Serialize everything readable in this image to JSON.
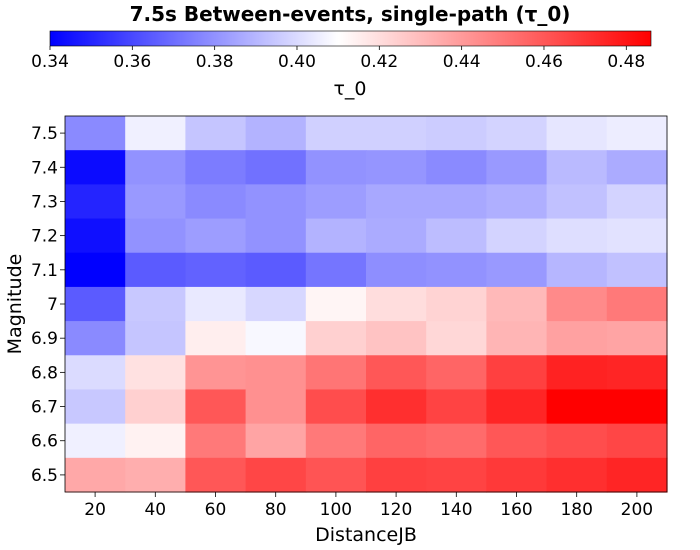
{
  "chart_data": {
    "type": "heatmap",
    "title": "7.5s Between-events, single-path (τ_0)",
    "xlabel": "DistanceJB",
    "ylabel": "Magnitude",
    "x": [
      "20",
      "40",
      "60",
      "80",
      "100",
      "120",
      "140",
      "160",
      "180",
      "200"
    ],
    "y": [
      "7.5",
      "7.4",
      "7.3",
      "7.2",
      "7.1",
      "7",
      "6.9",
      "6.8",
      "6.7",
      "6.6",
      "6.5"
    ],
    "values": [
      [
        0.378,
        0.406,
        0.394,
        0.389,
        0.397,
        0.397,
        0.396,
        0.398,
        0.403,
        0.405
      ],
      [
        0.343,
        0.38,
        0.374,
        0.371,
        0.38,
        0.381,
        0.378,
        0.382,
        0.391,
        0.387
      ],
      [
        0.35,
        0.382,
        0.378,
        0.38,
        0.383,
        0.386,
        0.386,
        0.388,
        0.393,
        0.398
      ],
      [
        0.344,
        0.38,
        0.383,
        0.38,
        0.389,
        0.387,
        0.392,
        0.398,
        0.401,
        0.402
      ],
      [
        0.34,
        0.365,
        0.367,
        0.365,
        0.372,
        0.379,
        0.38,
        0.382,
        0.39,
        0.393
      ],
      [
        0.365,
        0.395,
        0.404,
        0.399,
        0.413,
        0.42,
        0.423,
        0.431,
        0.445,
        0.45
      ],
      [
        0.378,
        0.394,
        0.415,
        0.408,
        0.424,
        0.428,
        0.422,
        0.432,
        0.438,
        0.437
      ],
      [
        0.4,
        0.419,
        0.442,
        0.443,
        0.451,
        0.46,
        0.456,
        0.467,
        0.476,
        0.475
      ],
      [
        0.395,
        0.424,
        0.46,
        0.443,
        0.463,
        0.472,
        0.466,
        0.475,
        0.486,
        0.486
      ],
      [
        0.406,
        0.414,
        0.45,
        0.437,
        0.45,
        0.456,
        0.454,
        0.46,
        0.463,
        0.465
      ],
      [
        0.436,
        0.434,
        0.46,
        0.465,
        0.461,
        0.467,
        0.466,
        0.469,
        0.472,
        0.475
      ]
    ],
    "colorbar": {
      "label": "τ_0",
      "min": 0.34,
      "max": 0.486,
      "center": 0.41,
      "ticks": [
        "0.34",
        "0.36",
        "0.38",
        "0.40",
        "0.42",
        "0.44",
        "0.46",
        "0.48"
      ],
      "placement": "top",
      "colors": {
        "low": "#0000ff",
        "mid": "#ffffff",
        "high": "#ff0000"
      }
    },
    "grid": false
  }
}
